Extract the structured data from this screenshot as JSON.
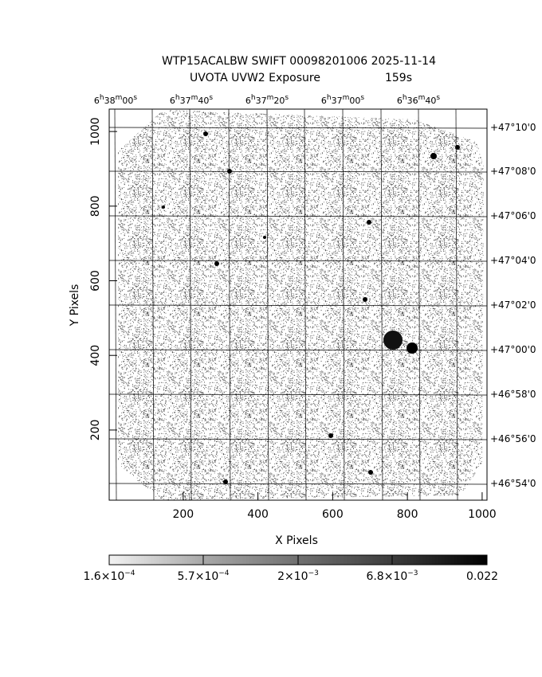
{
  "title": "WTP15ACALBW SWIFT 00098201006 2025-11-14",
  "subtitle": {
    "left": "UVOTA UVW2 Exposure",
    "right": "159s"
  },
  "x_axis": {
    "label": "X Pixels",
    "lim": [
      2,
      1013
    ],
    "ticks": [
      200,
      400,
      600,
      800,
      1000
    ]
  },
  "y_axis": {
    "label": "Y Pixels",
    "lim": [
      12,
      1060
    ],
    "ticks": [
      200,
      400,
      600,
      800,
      1000
    ]
  },
  "ra_labels": [
    [
      "6",
      "h",
      "38",
      "m",
      "00",
      "s"
    ],
    [
      "6",
      "h",
      "37",
      "m",
      "40",
      "s"
    ],
    [
      "6",
      "h",
      "37",
      "m",
      "20",
      "s"
    ],
    [
      "6",
      "h",
      "37",
      "m",
      "00",
      "s"
    ],
    [
      "6",
      "h",
      "36",
      "m",
      "40",
      "s"
    ]
  ],
  "dec_labels": [
    "+47°10'0",
    "+47°08'0",
    "+47°06'0",
    "+47°04'0",
    "+47°02'0",
    "+47°00'0",
    "+46°58'0",
    "+46°56'0",
    "+46°54'0"
  ],
  "colorbar": {
    "labels": [
      {
        "mantissa": "1.6×10",
        "exponent": "−4"
      },
      {
        "mantissa": "5.7×10",
        "exponent": "−4"
      },
      {
        "mantissa": "2×10",
        "exponent": "−3"
      },
      {
        "mantissa": "6.8×10",
        "exponent": "−3"
      },
      {
        "mantissa": "0.022"
      }
    ]
  }
}
